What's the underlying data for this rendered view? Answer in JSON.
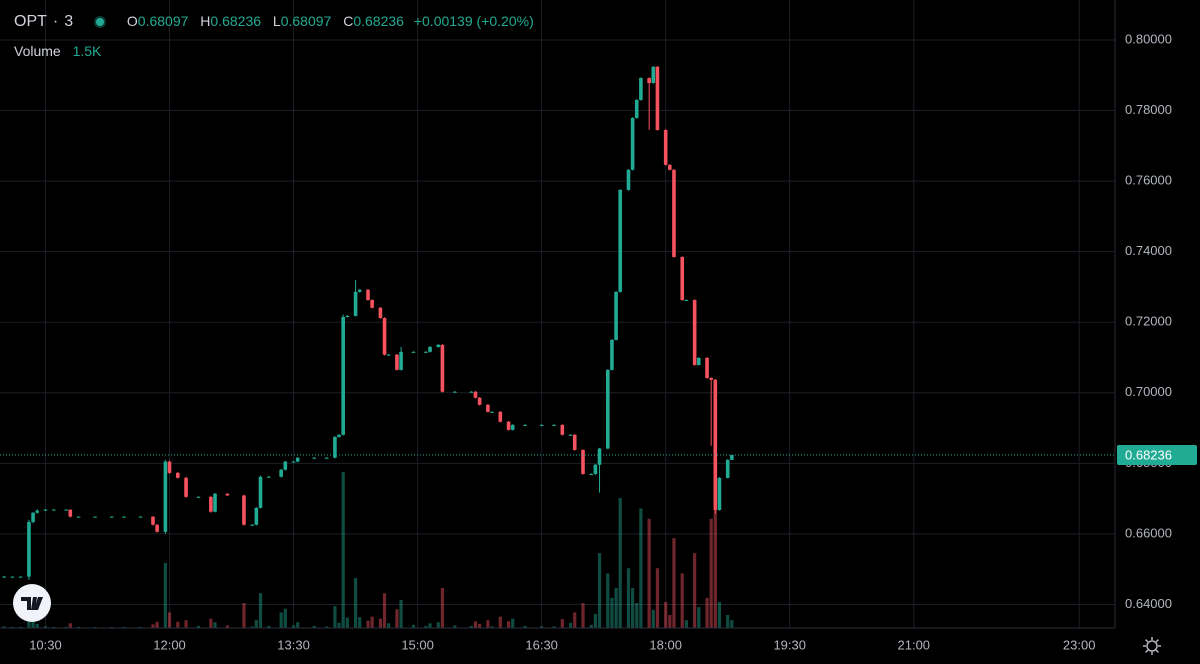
{
  "chart_data": {
    "type": "candlestick",
    "symbol": "OPT",
    "interval": "3",
    "legend_labels": [
      "O",
      "H",
      "L",
      "C"
    ],
    "change": "+0.00139",
    "change_pct": "(+0.20%)",
    "volume_title": "Volume",
    "volume_value_label": "1.5K",
    "up_color": "#22ab94",
    "down_color": "#f7525f",
    "grid": true,
    "x": [
      "10:00",
      "10:06",
      "10:12",
      "10:18",
      "10:21",
      "10:24",
      "10:30",
      "10:36",
      "10:45",
      "10:48",
      "10:54",
      "11:06",
      "11:18",
      "11:27",
      "11:39",
      "11:48",
      "11:51",
      "11:57",
      "12:00",
      "12:06",
      "12:12",
      "12:21",
      "12:30",
      "12:33",
      "12:42",
      "12:54",
      "13:00",
      "13:03",
      "13:06",
      "13:12",
      "13:21",
      "13:24",
      "13:30",
      "13:33",
      "13:45",
      "13:54",
      "14:00",
      "14:03",
      "14:06",
      "14:09",
      "14:15",
      "14:18",
      "14:24",
      "14:27",
      "14:33",
      "14:36",
      "14:39",
      "14:45",
      "14:48",
      "14:57",
      "15:06",
      "15:09",
      "15:15",
      "15:18",
      "15:27",
      "15:39",
      "15:42",
      "15:45",
      "15:51",
      "15:54",
      "16:00",
      "16:06",
      "16:09",
      "16:18",
      "16:30",
      "16:39",
      "16:45",
      "16:51",
      "16:54",
      "17:00",
      "17:06",
      "17:09",
      "17:12",
      "17:18",
      "17:21",
      "17:24",
      "17:27",
      "17:33",
      "17:36",
      "17:39",
      "17:42",
      "17:48",
      "17:51",
      "17:54",
      "18:00",
      "18:03",
      "18:06",
      "18:12",
      "18:15",
      "18:21",
      "18:24",
      "18:30",
      "18:33",
      "18:36",
      "18:39",
      "18:45",
      "18:48"
    ],
    "open": [
      0.6479,
      0.6479,
      0.6479,
      0.6479,
      0.6634,
      0.666,
      0.6666,
      0.6669,
      0.6669,
      0.6669,
      0.6649,
      0.6649,
      0.6649,
      0.6649,
      0.6649,
      0.6649,
      0.6626,
      0.6606,
      0.6805,
      0.6773,
      0.6759,
      0.6705,
      0.6705,
      0.6663,
      0.6714,
      0.6709,
      0.6626,
      0.6626,
      0.6674,
      0.6762,
      0.6762,
      0.6782,
      0.6805,
      0.6805,
      0.6816,
      0.6816,
      0.6816,
      0.6875,
      0.6881,
      0.7215,
      0.7218,
      0.7286,
      0.7292,
      0.7263,
      0.7241,
      0.7212,
      0.7108,
      0.7108,
      0.7065,
      0.7116,
      0.7116,
      0.7116,
      0.713,
      0.7136,
      0.7003,
      0.7003,
      0.7003,
      0.6986,
      0.6966,
      0.6946,
      0.6946,
      0.6918,
      0.6895,
      0.6909,
      0.6909,
      0.6909,
      0.6909,
      0.6881,
      0.6881,
      0.6838,
      0.677,
      0.677,
      0.6796,
      0.6842,
      0.7065,
      0.715,
      0.7286,
      0.7575,
      0.7632,
      0.7779,
      0.783,
      0.7892,
      0.7878,
      0.7924,
      0.7745,
      0.7646,
      0.7632,
      0.7385,
      0.7263,
      0.7263,
      0.7079,
      0.7099,
      0.7042,
      0.7037,
      0.6668,
      0.6759,
      0.68097
    ],
    "high": [
      0.6481,
      0.648,
      0.648,
      0.664,
      0.6662,
      0.667,
      0.667,
      0.667,
      0.667,
      0.6669,
      0.665,
      0.665,
      0.665,
      0.665,
      0.665,
      0.665,
      0.6628,
      0.681,
      0.6808,
      0.6776,
      0.6762,
      0.6707,
      0.6707,
      0.6716,
      0.6715,
      0.6711,
      0.6628,
      0.6676,
      0.6765,
      0.6764,
      0.6784,
      0.6807,
      0.6807,
      0.6818,
      0.6818,
      0.6818,
      0.6877,
      0.6883,
      0.7222,
      0.722,
      0.732,
      0.7294,
      0.7294,
      0.7265,
      0.7243,
      0.7214,
      0.711,
      0.711,
      0.713,
      0.7118,
      0.7118,
      0.7132,
      0.7138,
      0.7138,
      0.7005,
      0.7005,
      0.7005,
      0.6988,
      0.6968,
      0.6948,
      0.6948,
      0.692,
      0.6911,
      0.6911,
      0.6911,
      0.6911,
      0.6911,
      0.6883,
      0.6883,
      0.684,
      0.6772,
      0.6798,
      0.6844,
      0.7067,
      0.7152,
      0.7288,
      0.7577,
      0.7634,
      0.7781,
      0.7832,
      0.7894,
      0.7894,
      0.7926,
      0.7926,
      0.7747,
      0.7648,
      0.7634,
      0.7387,
      0.7265,
      0.7265,
      0.7101,
      0.7101,
      0.7044,
      0.7039,
      0.6761,
      0.6812,
      0.68236
    ],
    "low": [
      0.6477,
      0.6478,
      0.6478,
      0.647,
      0.663,
      0.6658,
      0.6665,
      0.6668,
      0.6668,
      0.6647,
      0.6648,
      0.6648,
      0.6648,
      0.6648,
      0.6648,
      0.6624,
      0.6604,
      0.66,
      0.677,
      0.6757,
      0.6703,
      0.6703,
      0.666,
      0.6661,
      0.6708,
      0.6624,
      0.6624,
      0.6624,
      0.6672,
      0.676,
      0.676,
      0.678,
      0.6803,
      0.6803,
      0.6814,
      0.6814,
      0.6814,
      0.6873,
      0.6879,
      0.7213,
      0.7216,
      0.7284,
      0.7261,
      0.7239,
      0.721,
      0.7106,
      0.7106,
      0.7063,
      0.7063,
      0.7114,
      0.7114,
      0.7114,
      0.7128,
      0.7001,
      0.7001,
      0.7001,
      0.6984,
      0.6964,
      0.6944,
      0.6944,
      0.6916,
      0.6893,
      0.6893,
      0.6907,
      0.6907,
      0.6907,
      0.6879,
      0.6879,
      0.6836,
      0.6768,
      0.6768,
      0.6768,
      0.6717,
      0.684,
      0.7063,
      0.7148,
      0.7284,
      0.7573,
      0.763,
      0.7777,
      0.7828,
      0.7745,
      0.7876,
      0.7743,
      0.7644,
      0.763,
      0.7383,
      0.7261,
      0.7261,
      0.7077,
      0.7077,
      0.704,
      0.685,
      0.6657,
      0.6666,
      0.6757,
      0.68097
    ],
    "close": [
      0.6479,
      0.6479,
      0.6479,
      0.6634,
      0.666,
      0.6666,
      0.6669,
      0.6669,
      0.6669,
      0.6649,
      0.6649,
      0.6649,
      0.6649,
      0.6649,
      0.6649,
      0.6626,
      0.6606,
      0.6805,
      0.6773,
      0.6759,
      0.6705,
      0.6705,
      0.6663,
      0.6714,
      0.6709,
      0.6626,
      0.6626,
      0.6674,
      0.6762,
      0.6762,
      0.6782,
      0.6805,
      0.6805,
      0.6816,
      0.6816,
      0.6816,
      0.6875,
      0.6881,
      0.7215,
      0.7218,
      0.7286,
      0.7292,
      0.7263,
      0.7241,
      0.7212,
      0.7108,
      0.7108,
      0.7065,
      0.7116,
      0.7116,
      0.7116,
      0.713,
      0.7136,
      0.7003,
      0.7003,
      0.7003,
      0.6986,
      0.6966,
      0.6946,
      0.6946,
      0.6918,
      0.6895,
      0.6909,
      0.6909,
      0.6909,
      0.6909,
      0.6881,
      0.6881,
      0.6838,
      0.677,
      0.677,
      0.6796,
      0.6842,
      0.7065,
      0.715,
      0.7286,
      0.7575,
      0.7632,
      0.7779,
      0.783,
      0.7892,
      0.7878,
      0.7924,
      0.7745,
      0.7646,
      0.7632,
      0.7385,
      0.7263,
      0.7263,
      0.7079,
      0.7099,
      0.7042,
      0.7037,
      0.6668,
      0.6759,
      0.681,
      0.68236
    ],
    "volume": [
      300,
      200,
      200,
      4500,
      1500,
      800,
      300,
      200,
      200,
      900,
      200,
      200,
      200,
      200,
      200,
      700,
      1200,
      12500,
      3000,
      1200,
      1500,
      400,
      1800,
      1100,
      500,
      4800,
      300,
      1500,
      6700,
      400,
      3000,
      3700,
      500,
      1100,
      400,
      300,
      4200,
      1000,
      30000,
      2000,
      9600,
      2100,
      1400,
      2200,
      1800,
      6700,
      900,
      3600,
      5400,
      600,
      400,
      900,
      1100,
      7700,
      500,
      400,
      1300,
      800,
      1500,
      300,
      2200,
      1300,
      1800,
      400,
      300,
      300,
      1700,
      1000,
      3000,
      4800,
      600,
      2700,
      14400,
      10500,
      5800,
      7700,
      25000,
      11500,
      7700,
      4800,
      23000,
      21000,
      3500,
      11500,
      5000,
      2500,
      17300,
      10500,
      1500,
      14400,
      4000,
      5800,
      21000,
      30500,
      5000,
      2500,
      1500
    ],
    "xlim": [
      "09:57",
      "23:26"
    ],
    "xticks": [
      "10:30",
      "12:00",
      "13:30",
      "15:00",
      "16:30",
      "18:00",
      "19:30",
      "21:00",
      "23:00"
    ],
    "ylim": [
      0.63334,
      0.81133
    ],
    "yticks": [
      {
        "value": 0.64,
        "label": "0.64000"
      },
      {
        "value": 0.66,
        "label": "0.66000"
      },
      {
        "value": 0.68,
        "label": "0.68000"
      },
      {
        "value": 0.7,
        "label": "0.70000"
      },
      {
        "value": 0.72,
        "label": "0.72000"
      },
      {
        "value": 0.74,
        "label": "0.74000"
      },
      {
        "value": 0.76,
        "label": "0.76000"
      },
      {
        "value": 0.78,
        "label": "0.78000"
      },
      {
        "value": 0.8,
        "label": "0.80000"
      }
    ],
    "volume_ylim": [
      0,
      40000
    ]
  }
}
